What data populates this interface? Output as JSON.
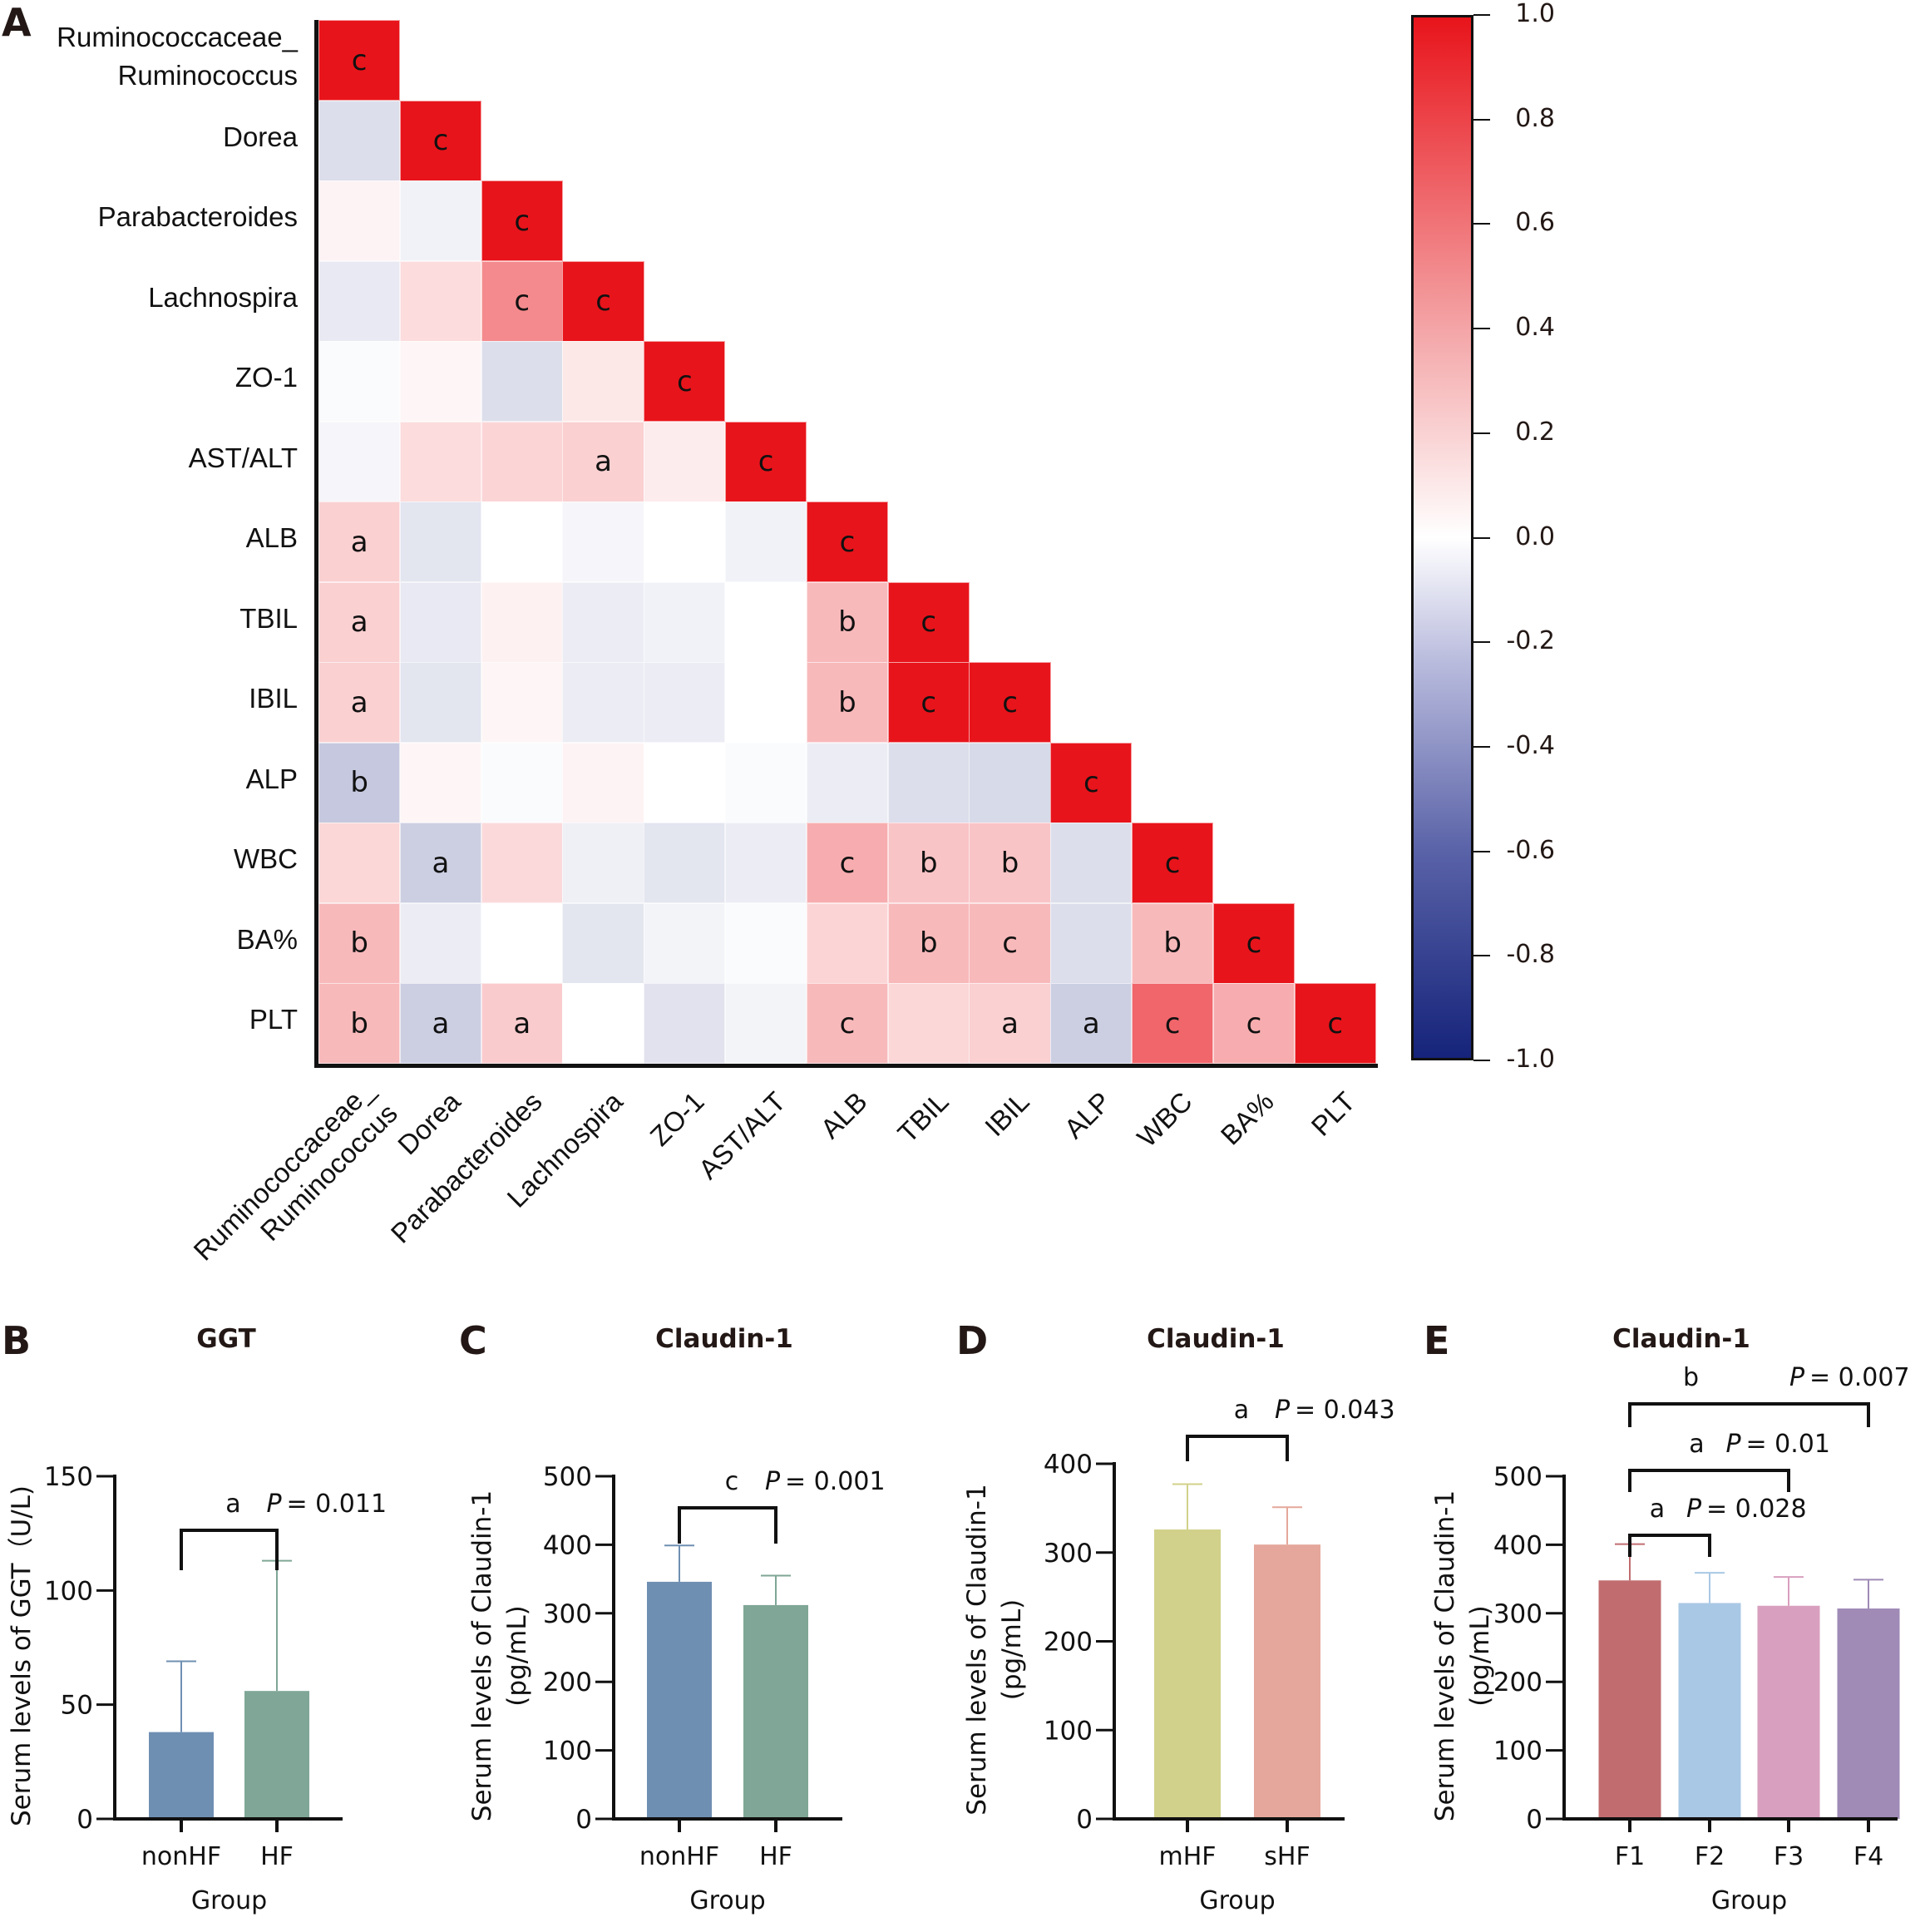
{
  "figure": {
    "panel_labels": [
      "A",
      "B",
      "C",
      "D",
      "E"
    ]
  },
  "chart_data": [
    {
      "panel": "A",
      "type": "heatmap",
      "title": "",
      "variables": [
        "Ruminococcaceae_ Ruminococcus",
        "Dorea",
        "Parabacteroides",
        "Lachnospira",
        "ZO-1",
        "AST/ALT",
        "ALB",
        "TBIL",
        "IBIL",
        "ALP",
        "WBC",
        "BA%",
        "PLT"
      ],
      "row_labels": [
        [
          "Ruminococcaceae_",
          "Ruminococcus"
        ],
        [
          "Dorea"
        ],
        [
          "Parabacteroides"
        ],
        [
          "Lachnospira"
        ],
        [
          "ZO-1"
        ],
        [
          "AST/ALT"
        ],
        [
          "ALB"
        ],
        [
          "TBIL"
        ],
        [
          "IBIL"
        ],
        [
          "ALP"
        ],
        [
          "WBC"
        ],
        [
          "BA%"
        ],
        [
          "PLT"
        ]
      ],
      "col_labels": [
        [
          "Ruminococcaceae_",
          "Ruminococcus"
        ],
        [
          "Dorea"
        ],
        [
          "Parabacteroides"
        ],
        [
          "Lachnospira"
        ],
        [
          "ZO-1"
        ],
        [
          "AST/ALT"
        ],
        [
          "ALB"
        ],
        [
          "TBIL"
        ],
        [
          "IBIL"
        ],
        [
          "ALP"
        ],
        [
          "WBC"
        ],
        [
          "BA%"
        ],
        [
          "PLT"
        ]
      ],
      "triangle": "lower",
      "values": [
        [
          1.0
        ],
        [
          -0.15,
          1.0
        ],
        [
          0.05,
          -0.06,
          1.0
        ],
        [
          -0.1,
          0.15,
          0.5,
          1.0
        ],
        [
          -0.02,
          0.04,
          -0.15,
          0.1,
          1.0
        ],
        [
          -0.04,
          0.15,
          0.18,
          0.2,
          0.08,
          1.0
        ],
        [
          0.2,
          -0.12,
          0.0,
          -0.04,
          0.0,
          -0.06,
          1.0
        ],
        [
          0.2,
          -0.1,
          0.06,
          -0.08,
          -0.06,
          0.0,
          0.3,
          1.0
        ],
        [
          0.2,
          -0.12,
          0.04,
          -0.08,
          -0.08,
          0.0,
          0.3,
          1.0,
          1.0
        ],
        [
          -0.25,
          0.04,
          -0.02,
          0.05,
          0.0,
          -0.02,
          -0.08,
          -0.15,
          -0.17,
          1.0
        ],
        [
          0.17,
          -0.22,
          0.16,
          -0.07,
          -0.12,
          -0.08,
          0.35,
          0.25,
          0.25,
          -0.15,
          1.0
        ],
        [
          0.3,
          -0.08,
          0.0,
          -0.12,
          -0.05,
          -0.02,
          0.18,
          0.3,
          0.3,
          -0.15,
          0.3,
          1.0
        ],
        [
          0.3,
          -0.22,
          0.22,
          0.0,
          -0.13,
          -0.05,
          0.3,
          0.17,
          0.2,
          -0.22,
          0.65,
          0.35,
          1.0
        ]
      ],
      "significance": [
        [
          "c"
        ],
        [
          "",
          "c"
        ],
        [
          "",
          "",
          "c"
        ],
        [
          "",
          "",
          "c",
          "c"
        ],
        [
          "",
          "",
          "",
          "",
          "c"
        ],
        [
          "",
          "",
          "",
          "a",
          "",
          "c"
        ],
        [
          "a",
          "",
          "",
          "",
          "",
          "",
          "c"
        ],
        [
          "a",
          "",
          "",
          "",
          "",
          "",
          "b",
          "c"
        ],
        [
          "a",
          "",
          "",
          "",
          "",
          "",
          "b",
          "c",
          "c"
        ],
        [
          "b",
          "",
          "",
          "",
          "",
          "",
          "",
          "",
          "",
          "c"
        ],
        [
          "",
          "a",
          "",
          "",
          "",
          "",
          "c",
          "b",
          "b",
          "",
          "c"
        ],
        [
          "b",
          "",
          "",
          "",
          "",
          "",
          "",
          "b",
          "c",
          "",
          "b",
          "c"
        ],
        [
          "b",
          "a",
          "a",
          "",
          "",
          "",
          "c",
          "",
          "a",
          "a",
          "c",
          "c",
          "c"
        ]
      ],
      "colorbar": {
        "range": [
          -1.0,
          1.0
        ],
        "ticks": [
          "1.0",
          "0.8",
          "0.6",
          "0.4",
          "0.2",
          "0.0",
          "-0.2",
          "-0.4",
          "-0.6",
          "-0.8",
          "-1.0"
        ],
        "tick_values": [
          1.0,
          0.8,
          0.6,
          0.4,
          0.2,
          0.0,
          -0.2,
          -0.4,
          -0.6,
          -0.8,
          -1.0
        ],
        "colors": {
          "positive": "#e8141b",
          "zero": "#ffffff",
          "negative": "#15237a"
        }
      }
    },
    {
      "panel": "B",
      "type": "bar",
      "title": "GGT",
      "categories": [
        "nonHF",
        "HF"
      ],
      "values": [
        38,
        56
      ],
      "error_upper": [
        69,
        113
      ],
      "colors": [
        "#6f8fb2",
        "#7fa696"
      ],
      "xlabel": "Group",
      "ylabel": "Serum levels of GGT（U/L)",
      "ylim": [
        0,
        150
      ],
      "yticks": [
        0,
        50,
        100,
        150
      ],
      "comparisons": [
        {
          "from": 0,
          "to": 1,
          "mark": "a",
          "p_label": "P",
          "p_text": " = 0.011"
        }
      ]
    },
    {
      "panel": "C",
      "type": "bar",
      "title": "Claudin-1",
      "categories": [
        "nonHF",
        "HF"
      ],
      "values": [
        346,
        312
      ],
      "error_upper": [
        399,
        355
      ],
      "colors": [
        "#6f8fb2",
        "#7fa696"
      ],
      "xlabel": "Group",
      "ylabel": [
        "Serum levels of Claudin-1",
        "(pg/mL)"
      ],
      "ylim": [
        0,
        500
      ],
      "yticks": [
        0,
        100,
        200,
        300,
        400,
        500
      ],
      "comparisons": [
        {
          "from": 0,
          "to": 1,
          "mark": "c",
          "p_label": "P",
          "p_text": " = 0.001"
        }
      ]
    },
    {
      "panel": "D",
      "type": "bar",
      "title": "Claudin-1",
      "categories": [
        "mHF",
        "sHF"
      ],
      "values": [
        326,
        309
      ],
      "error_upper": [
        377,
        351
      ],
      "colors": [
        "#d1d18b",
        "#e5a79b"
      ],
      "xlabel": "Group",
      "ylabel": [
        "Serum levels of Claudin-1",
        "(pg/mL)"
      ],
      "ylim": [
        0,
        400
      ],
      "yticks": [
        0,
        100,
        200,
        300,
        400
      ],
      "comparisons": [
        {
          "from": 0,
          "to": 1,
          "mark": "a",
          "p_label": "P",
          "p_text": " = 0.043"
        }
      ]
    },
    {
      "panel": "E",
      "type": "bar",
      "title": "Claudin-1",
      "categories": [
        "F1",
        "F2",
        "F3",
        "F4"
      ],
      "values": [
        348,
        315,
        311,
        307
      ],
      "error_upper": [
        401,
        359,
        353,
        349
      ],
      "colors": [
        "#c16d70",
        "#a9c8e5",
        "#d99fbf",
        "#9f8bb6"
      ],
      "xlabel": "Group",
      "ylabel": [
        "Serum levels of Claudin-1",
        "(pg/mL)"
      ],
      "ylim": [
        0,
        500
      ],
      "yticks": [
        0,
        100,
        200,
        300,
        400,
        500
      ],
      "comparisons": [
        {
          "from": 0,
          "to": 1,
          "mark": "a",
          "p_label": "P",
          "p_text": " = 0.028"
        },
        {
          "from": 0,
          "to": 2,
          "mark": "a",
          "p_label": "P",
          "p_text": " = 0.01"
        },
        {
          "from": 0,
          "to": 3,
          "mark": "b",
          "p_label": "P",
          "p_text": " = 0.007"
        }
      ]
    }
  ]
}
